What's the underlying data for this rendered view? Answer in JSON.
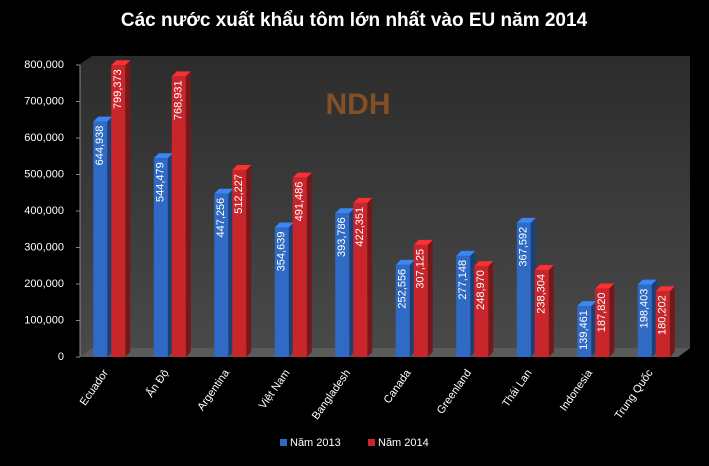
{
  "chart_data": {
    "type": "bar",
    "title": "Các nước xuất khẩu tôm lớn nhất vào EU năm 2014",
    "watermark": "NDH",
    "categories": [
      "Ecuador",
      "Ấn Độ",
      "Argentina",
      "Việt Nam",
      "Bangladesh",
      "Canada",
      "Greenland",
      "Thái Lan",
      "Indonesia",
      "Trung Quốc"
    ],
    "series": [
      {
        "name": "Năm 2013",
        "color": "#2f6bc4",
        "values": [
          644938,
          544479,
          447256,
          354639,
          393786,
          252556,
          277148,
          367592,
          139461,
          198403
        ],
        "value_labels": [
          "644,938",
          "544,479",
          "447,256",
          "354,639",
          "393,786",
          "252,556",
          "277,148",
          "367,592",
          "139,461",
          "198,403"
        ]
      },
      {
        "name": "Năm 2014",
        "color": "#c8262a",
        "values": [
          799373,
          768931,
          512227,
          491486,
          422351,
          307125,
          248970,
          238304,
          187820,
          180202
        ],
        "value_labels": [
          "799,373",
          "768,931",
          "512,227",
          "491,486",
          "422,351",
          "307,125",
          "248,970",
          "238,304",
          "187,820",
          "180,202"
        ]
      }
    ],
    "ylim": [
      0,
      800000
    ],
    "yticks": [
      {
        "value": 0,
        "label": "0"
      },
      {
        "value": 100000,
        "label": "100,000"
      },
      {
        "value": 200000,
        "label": "200,000"
      },
      {
        "value": 300000,
        "label": "300,000"
      },
      {
        "value": 400000,
        "label": "400,000"
      },
      {
        "value": 500000,
        "label": "500,000"
      },
      {
        "value": 600000,
        "label": "600,000"
      },
      {
        "value": 700000,
        "label": "700,000"
      },
      {
        "value": 800000,
        "label": "800,000"
      }
    ]
  }
}
